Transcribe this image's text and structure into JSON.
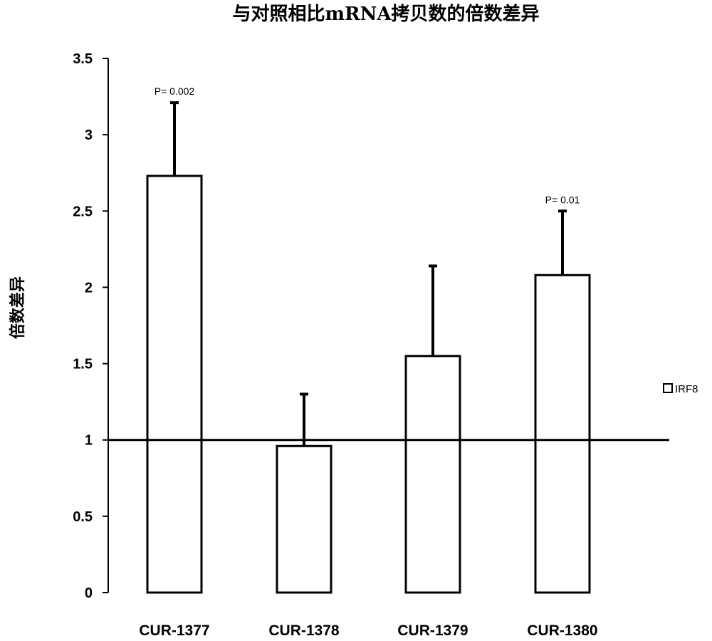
{
  "chart_data": {
    "type": "bar",
    "title": "与对照相比mRNA拷贝数的倍数差异",
    "xlabel": "",
    "ylabel": "倍数差异",
    "ylim": [
      0,
      3.5
    ],
    "yticks": [
      "0",
      "0.5",
      "1",
      "1.5",
      "2",
      "2.5",
      "3",
      "3.5"
    ],
    "categories": [
      "CUR-1377",
      "CUR-1378",
      "CUR-1379",
      "CUR-1380"
    ],
    "series": [
      {
        "name": "IRF8",
        "values": [
          2.73,
          0.96,
          1.55,
          2.08
        ],
        "error_upper": [
          3.21,
          1.3,
          2.14,
          2.5
        ]
      }
    ],
    "annotations": [
      "P= 0.002",
      "",
      "",
      "P= 0.01"
    ],
    "reference_line": 1,
    "legend_position": "right",
    "grid": false,
    "bar_fill": "#ffffff",
    "bar_stroke": "#000000"
  }
}
